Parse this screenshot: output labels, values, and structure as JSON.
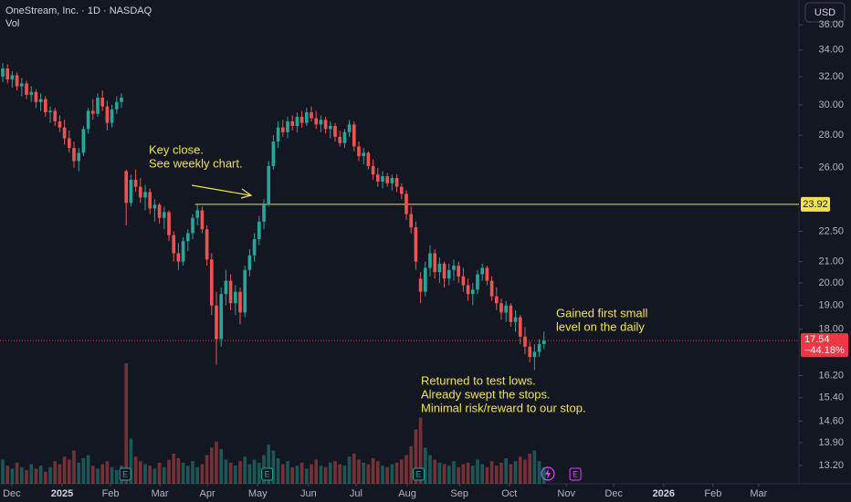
{
  "chart_data": {
    "type": "candlestick",
    "title": "OneStream, Inc. · 1D · NASDAQ",
    "volume_label": "Vol",
    "currency": "USD",
    "log_scale": true,
    "grid": false,
    "up_color": "#26a69a",
    "down_color": "#ef5350",
    "ylim": [
      12.66,
      38.1
    ],
    "yticks": [
      {
        "value": 13.2,
        "label": "13.20"
      },
      {
        "value": 13.9,
        "label": "13.90"
      },
      {
        "value": 14.6,
        "label": "14.60"
      },
      {
        "value": 15.4,
        "label": "15.40"
      },
      {
        "value": 16.2,
        "label": "16.20"
      },
      {
        "value": 18,
        "label": "18.00"
      },
      {
        "value": 19,
        "label": "19.00"
      },
      {
        "value": 20,
        "label": "20.00"
      },
      {
        "value": 21,
        "label": "21.00"
      },
      {
        "value": 22.5,
        "label": "22.50"
      },
      {
        "value": 26,
        "label": "26.00"
      },
      {
        "value": 28,
        "label": "28.00"
      },
      {
        "value": 30,
        "label": "30.00"
      },
      {
        "value": 32,
        "label": "32.00"
      },
      {
        "value": 34,
        "label": "34.00"
      },
      {
        "value": 36,
        "label": "36.00"
      }
    ],
    "xlim": [
      -0.58,
      167.7
    ],
    "xticks": [
      {
        "value": 1.9,
        "label": "Dec"
      },
      {
        "value": 12.5,
        "label": "2025"
      },
      {
        "value": 22.7,
        "label": "Feb"
      },
      {
        "value": 33.1,
        "label": "Mar"
      },
      {
        "value": 43.1,
        "label": "Apr"
      },
      {
        "value": 53.7,
        "label": "May"
      },
      {
        "value": 64.4,
        "label": "Jun"
      },
      {
        "value": 74.4,
        "label": "Jul"
      },
      {
        "value": 85.2,
        "label": "Aug"
      },
      {
        "value": 96.2,
        "label": "Sep"
      },
      {
        "value": 106.7,
        "label": "Oct"
      },
      {
        "value": 118.7,
        "label": "Nov"
      },
      {
        "value": 128.7,
        "label": "Dec"
      },
      {
        "value": 139.2,
        "label": "2026"
      },
      {
        "value": 149.6,
        "label": "Feb"
      },
      {
        "value": 159.2,
        "label": "Mar"
      }
    ],
    "ohlc": [
      [
        32.0,
        33.0,
        31.6,
        32.6
      ],
      [
        32.6,
        32.9,
        31.5,
        31.8
      ],
      [
        31.8,
        32.4,
        31.2,
        32.1
      ],
      [
        32.1,
        32.3,
        31.0,
        31.3
      ],
      [
        31.3,
        31.9,
        30.6,
        31.5
      ],
      [
        31.5,
        31.7,
        30.4,
        30.7
      ],
      [
        30.7,
        31.3,
        30.2,
        30.9
      ],
      [
        30.9,
        31.1,
        29.8,
        30.2
      ],
      [
        30.2,
        30.8,
        29.6,
        30.4
      ],
      [
        30.4,
        30.6,
        29.2,
        29.5
      ],
      [
        29.5,
        29.9,
        28.8,
        29.6
      ],
      [
        29.6,
        29.8,
        28.6,
        28.9
      ],
      [
        28.9,
        29.3,
        28.2,
        28.5
      ],
      [
        28.5,
        29.0,
        27.4,
        27.8
      ],
      [
        27.8,
        28.3,
        26.9,
        27.2
      ],
      [
        27.2,
        27.6,
        26.0,
        26.4
      ],
      [
        26.4,
        27.2,
        25.8,
        26.9
      ],
      [
        26.9,
        28.6,
        26.7,
        28.4
      ],
      [
        28.4,
        29.8,
        28.1,
        29.6
      ],
      [
        29.6,
        30.4,
        29.0,
        29.4
      ],
      [
        29.4,
        30.8,
        29.2,
        30.5
      ],
      [
        30.5,
        31.0,
        29.6,
        29.9
      ],
      [
        29.9,
        30.3,
        28.3,
        28.8
      ],
      [
        28.8,
        30.0,
        28.5,
        29.7
      ],
      [
        29.7,
        30.6,
        29.4,
        30.2
      ],
      [
        30.2,
        30.8,
        29.8,
        30.5
      ],
      [
        25.8,
        25.9,
        22.8,
        24.0
      ],
      [
        24.0,
        25.6,
        23.8,
        25.3
      ],
      [
        25.3,
        25.9,
        24.6,
        24.9
      ],
      [
        24.9,
        25.4,
        24.0,
        24.3
      ],
      [
        24.3,
        25.0,
        23.6,
        24.6
      ],
      [
        24.6,
        24.8,
        23.4,
        23.7
      ],
      [
        23.7,
        24.2,
        23.0,
        23.9
      ],
      [
        23.9,
        24.0,
        22.9,
        23.2
      ],
      [
        23.2,
        23.8,
        22.6,
        23.5
      ],
      [
        23.5,
        23.6,
        22.0,
        22.3
      ],
      [
        22.3,
        22.5,
        21.0,
        21.4
      ],
      [
        21.4,
        21.9,
        20.6,
        21.0
      ],
      [
        21.0,
        22.2,
        20.8,
        22.0
      ],
      [
        22.0,
        22.6,
        21.5,
        22.4
      ],
      [
        22.4,
        23.4,
        22.1,
        23.2
      ],
      [
        23.2,
        23.9,
        22.8,
        23.6
      ],
      [
        23.6,
        23.8,
        22.4,
        22.6
      ],
      [
        22.6,
        22.8,
        20.8,
        21.1
      ],
      [
        21.1,
        21.4,
        18.6,
        19.0
      ],
      [
        19.0,
        19.6,
        16.6,
        17.6
      ],
      [
        17.6,
        19.8,
        17.3,
        19.5
      ],
      [
        19.5,
        20.6,
        19.0,
        20.1
      ],
      [
        20.1,
        20.4,
        18.8,
        19.1
      ],
      [
        19.1,
        19.9,
        18.6,
        19.6
      ],
      [
        19.6,
        19.8,
        18.2,
        18.7
      ],
      [
        18.7,
        20.8,
        18.5,
        20.6
      ],
      [
        20.6,
        21.6,
        20.3,
        21.3
      ],
      [
        21.3,
        22.4,
        21.0,
        22.1
      ],
      [
        22.1,
        23.3,
        21.8,
        23.0
      ],
      [
        23.0,
        24.2,
        22.6,
        23.9
      ],
      [
        23.9,
        26.4,
        23.8,
        26.1
      ],
      [
        26.1,
        28.0,
        25.9,
        27.6
      ],
      [
        27.6,
        28.9,
        27.2,
        28.5
      ],
      [
        28.5,
        29.0,
        27.9,
        28.2
      ],
      [
        28.2,
        29.2,
        27.8,
        28.9
      ],
      [
        28.9,
        29.3,
        28.3,
        28.6
      ],
      [
        28.6,
        29.5,
        28.2,
        29.2
      ],
      [
        29.2,
        29.6,
        28.5,
        28.8
      ],
      [
        28.8,
        29.8,
        28.6,
        29.5
      ],
      [
        29.5,
        29.9,
        28.9,
        29.1
      ],
      [
        29.1,
        29.6,
        28.4,
        28.7
      ],
      [
        28.7,
        29.3,
        28.2,
        29.0
      ],
      [
        29.0,
        29.2,
        28.1,
        28.4
      ],
      [
        28.4,
        28.9,
        27.8,
        28.6
      ],
      [
        28.6,
        28.8,
        27.6,
        27.9
      ],
      [
        27.9,
        28.3,
        27.3,
        27.5
      ],
      [
        27.5,
        28.4,
        27.2,
        28.2
      ],
      [
        28.2,
        29.0,
        27.9,
        28.7
      ],
      [
        28.7,
        28.9,
        27.0,
        27.3
      ],
      [
        27.3,
        27.6,
        26.4,
        26.7
      ],
      [
        26.7,
        27.2,
        26.2,
        26.9
      ],
      [
        26.9,
        27.0,
        25.9,
        26.1
      ],
      [
        26.1,
        26.5,
        25.3,
        25.6
      ],
      [
        25.6,
        26.0,
        24.9,
        25.2
      ],
      [
        25.2,
        25.8,
        24.8,
        25.5
      ],
      [
        25.5,
        25.7,
        24.9,
        25.1
      ],
      [
        25.1,
        25.6,
        24.7,
        25.4
      ],
      [
        25.4,
        25.6,
        24.6,
        24.9
      ],
      [
        24.9,
        25.1,
        24.2,
        24.5
      ],
      [
        24.5,
        24.7,
        23.1,
        23.4
      ],
      [
        23.4,
        23.8,
        22.4,
        22.7
      ],
      [
        22.7,
        23.0,
        20.6,
        21.0
      ],
      [
        20.2,
        20.5,
        19.1,
        19.6
      ],
      [
        19.6,
        21.0,
        19.4,
        20.7
      ],
      [
        20.7,
        21.8,
        20.3,
        21.4
      ],
      [
        21.4,
        21.6,
        20.2,
        20.5
      ],
      [
        20.5,
        21.2,
        20.0,
        20.9
      ],
      [
        20.9,
        21.0,
        19.8,
        20.2
      ],
      [
        20.2,
        20.9,
        19.9,
        20.6
      ],
      [
        20.6,
        21.1,
        20.1,
        20.8
      ],
      [
        20.8,
        21.0,
        20.0,
        20.3
      ],
      [
        20.3,
        20.7,
        19.6,
        19.9
      ],
      [
        19.9,
        20.2,
        19.2,
        19.5
      ],
      [
        19.5,
        20.0,
        19.0,
        19.7
      ],
      [
        19.7,
        20.6,
        19.5,
        20.4
      ],
      [
        20.4,
        20.9,
        20.1,
        20.7
      ],
      [
        20.7,
        20.8,
        19.9,
        20.1
      ],
      [
        20.1,
        20.3,
        19.2,
        19.4
      ],
      [
        19.4,
        19.8,
        18.8,
        19.1
      ],
      [
        19.1,
        19.3,
        18.4,
        18.7
      ],
      [
        18.7,
        19.2,
        18.3,
        19.0
      ],
      [
        19.0,
        19.1,
        18.1,
        18.3
      ],
      [
        18.3,
        18.8,
        17.9,
        18.5
      ],
      [
        18.5,
        18.6,
        17.4,
        17.7
      ],
      [
        17.7,
        18.1,
        17.0,
        17.3
      ],
      [
        17.3,
        17.5,
        16.7,
        16.9
      ],
      [
        16.9,
        17.4,
        16.4,
        17.1
      ],
      [
        17.1,
        17.6,
        16.9,
        17.4
      ],
      [
        17.4,
        17.9,
        17.2,
        17.54
      ]
    ],
    "volume": [
      1.6,
      1.2,
      1.0,
      1.4,
      1.1,
      0.9,
      1.3,
      1.0,
      1.2,
      0.8,
      1.1,
      1.5,
      1.3,
      1.8,
      1.6,
      2.2,
      1.4,
      1.7,
      1.9,
      1.2,
      1.0,
      1.3,
      1.5,
      1.1,
      0.9,
      1.2,
      8.0,
      3.0,
      1.8,
      1.5,
      1.3,
      1.2,
      1.0,
      1.4,
      1.1,
      1.6,
      2.0,
      1.7,
      1.4,
      1.2,
      1.5,
      1.1,
      1.3,
      1.9,
      2.4,
      2.8,
      2.3,
      1.6,
      1.4,
      1.2,
      1.5,
      1.8,
      1.3,
      1.6,
      1.4,
      1.9,
      2.6,
      2.2,
      1.7,
      1.3,
      1.5,
      1.1,
      1.2,
      1.4,
      1.0,
      1.3,
      1.6,
      1.2,
      1.1,
      1.4,
      1.5,
      1.3,
      1.2,
      1.8,
      2.0,
      1.6,
      1.4,
      1.3,
      1.7,
      1.5,
      1.2,
      1.1,
      1.3,
      1.4,
      1.6,
      1.9,
      2.5,
      3.6,
      4.4,
      2.4,
      1.9,
      1.6,
      1.4,
      1.3,
      1.2,
      1.5,
      1.1,
      1.3,
      1.4,
      1.2,
      1.6,
      1.3,
      1.1,
      1.5,
      1.2,
      1.4,
      1.7,
      1.3,
      1.5,
      1.8,
      1.6,
      2.0,
      2.2,
      1.5,
      1.1
    ],
    "vlim": [
      0,
      8.0
    ],
    "level": {
      "value": 23.92,
      "color": "#f2e24b",
      "from": 40.5
    },
    "last": {
      "value": 17.54,
      "change": {
        "value": -44.18,
        "label": "−44.18%"
      },
      "color": "#f23645"
    },
    "earnings": [
      {
        "x": 25.8,
        "label": "E"
      },
      {
        "x": 55.7,
        "label": "E"
      },
      {
        "x": 87.6,
        "label": "E"
      },
      {
        "x": 120.6,
        "label": "E",
        "upcoming": true
      }
    ],
    "annotations": [
      {
        "lines": [
          "Key close.",
          "See weekly chart."
        ]
      },
      {
        "lines": [
          "Gained first small",
          "level on the daily"
        ]
      },
      {
        "lines": [
          "Returned to test lows.",
          "Already swept the stops.",
          "Minimal risk/reward to our stop."
        ]
      }
    ]
  }
}
